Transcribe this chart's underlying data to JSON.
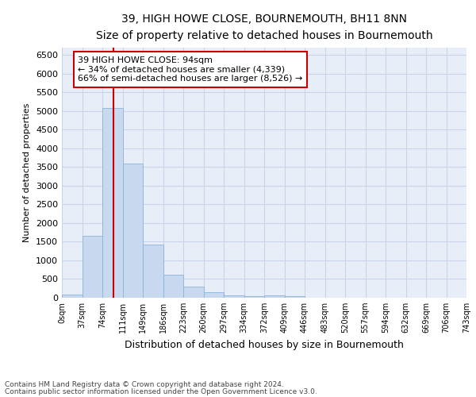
{
  "title": "39, HIGH HOWE CLOSE, BOURNEMOUTH, BH11 8NN",
  "subtitle": "Size of property relative to detached houses in Bournemouth",
  "xlabel": "Distribution of detached houses by size in Bournemouth",
  "ylabel": "Number of detached properties",
  "footnote1": "Contains HM Land Registry data © Crown copyright and database right 2024.",
  "footnote2": "Contains public sector information licensed under the Open Government Licence v3.0.",
  "annotation_title": "39 HIGH HOWE CLOSE: 94sqm",
  "annotation_line1": "← 34% of detached houses are smaller (4,339)",
  "annotation_line2": "66% of semi-detached houses are larger (8,526) →",
  "bar_values": [
    75,
    1650,
    5080,
    3590,
    1420,
    620,
    300,
    150,
    70,
    50,
    55,
    35,
    10,
    5,
    3,
    2,
    1,
    1,
    1,
    1
  ],
  "bin_labels": [
    "0sqm",
    "37sqm",
    "74sqm",
    "111sqm",
    "149sqm",
    "186sqm",
    "223sqm",
    "260sqm",
    "297sqm",
    "334sqm",
    "372sqm",
    "409sqm",
    "446sqm",
    "483sqm",
    "520sqm",
    "557sqm",
    "594sqm",
    "632sqm",
    "669sqm",
    "706sqm",
    "743sqm"
  ],
  "bar_color": "#c8d8ee",
  "bar_edge_color": "#8ab4d8",
  "vline_color": "#cc0000",
  "annotation_box_color": "#ffffff",
  "annotation_box_edge": "#cc0000",
  "ylim": [
    0,
    6700
  ],
  "yticks": [
    0,
    500,
    1000,
    1500,
    2000,
    2500,
    3000,
    3500,
    4000,
    4500,
    5000,
    5500,
    6000,
    6500
  ],
  "grid_color": "#c8d4e8",
  "background_color": "#ffffff",
  "ax_background_color": "#e8eef8"
}
